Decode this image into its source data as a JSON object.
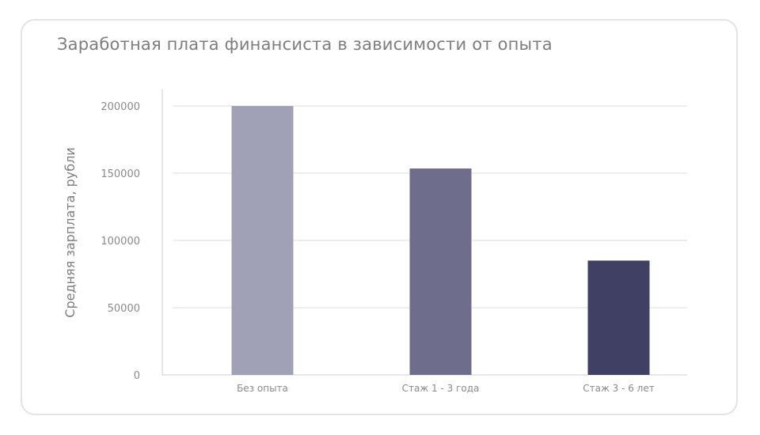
{
  "chart_data": {
    "type": "bar",
    "title": "Заработная плата финансиста в зависимости от опыта",
    "xlabel": "",
    "ylabel": "Средняя зарплата, рубли",
    "categories": [
      "Без опыта",
      "Стаж 1 - 3 года",
      "Стаж 3 - 6 лет"
    ],
    "values": [
      200000,
      153500,
      85000
    ],
    "ylim": [
      0,
      200000
    ],
    "yticks": [
      0,
      50000,
      100000,
      150000,
      200000
    ],
    "ytick_labels": [
      "0",
      "50000",
      "100000",
      "150000",
      "200000"
    ],
    "bar_colors": [
      "#a0a0b6",
      "#6e6e8c",
      "#403f64"
    ],
    "grid": true,
    "legend": "none"
  },
  "colors": {
    "grid": "#dcdcdc",
    "axis": "#cfcfcf",
    "text": "#7d7d7d",
    "tick_text": "#8a8a8a",
    "card_border": "#e3e3e3"
  }
}
